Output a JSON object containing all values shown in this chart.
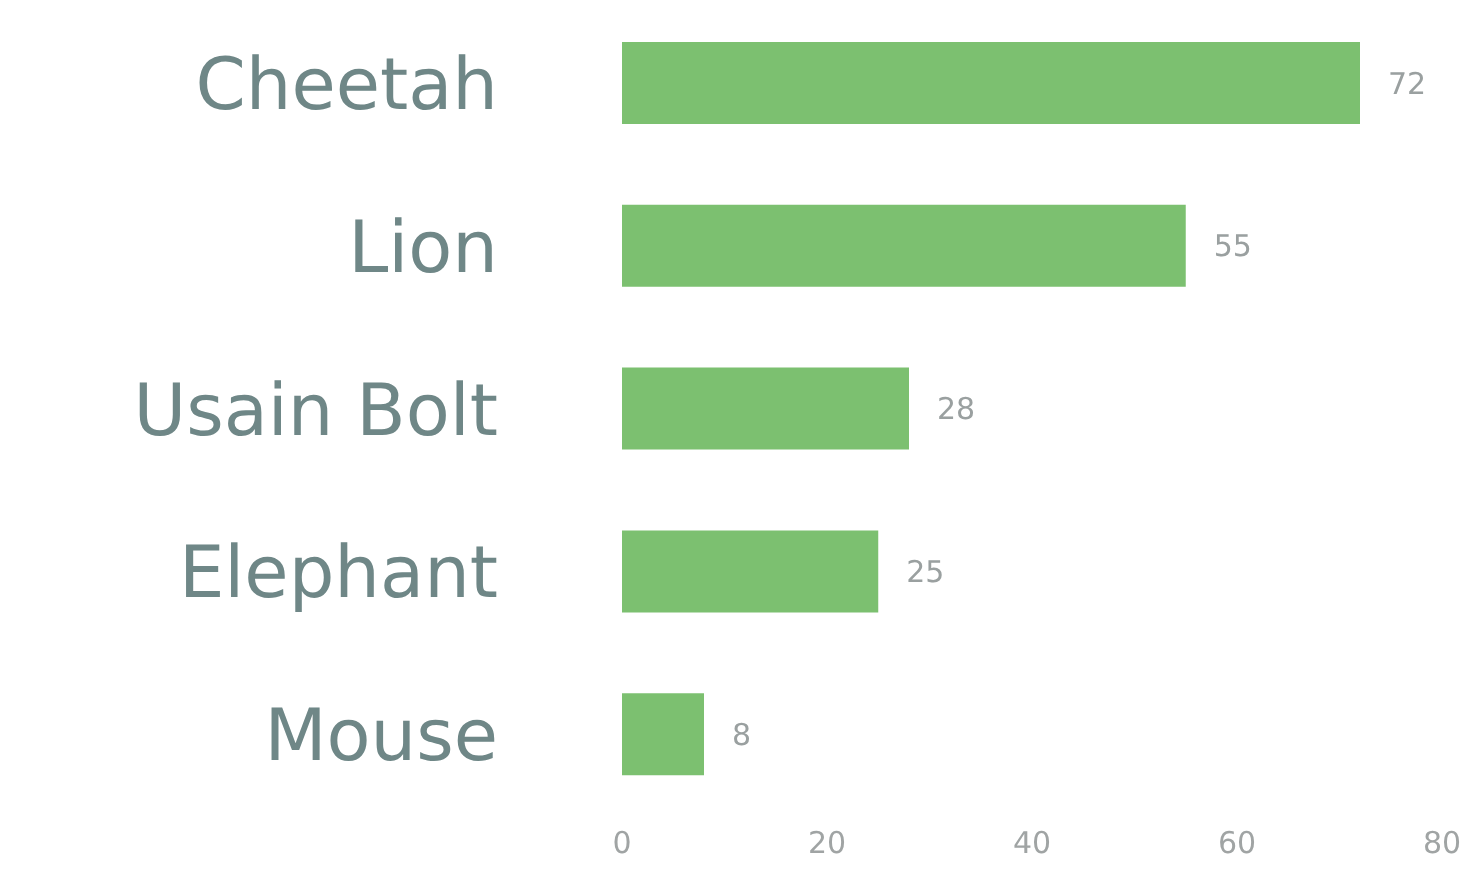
{
  "chart_data": {
    "type": "bar",
    "orientation": "horizontal",
    "categories": [
      "Cheetah",
      "Lion",
      "Usain Bolt",
      "Elephant",
      "Mouse"
    ],
    "values": [
      72,
      55,
      28,
      25,
      8
    ],
    "color": "#7cc070",
    "xlim": [
      0,
      80
    ],
    "xticks": [
      0,
      20,
      40,
      60,
      80
    ],
    "data_labels": true
  }
}
